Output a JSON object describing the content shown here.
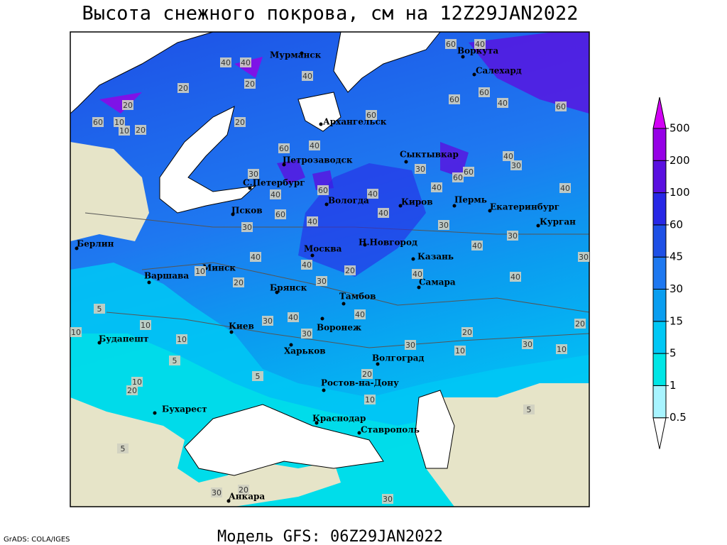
{
  "title": "Высота снежного покрова, см на 12Z29JAN2022",
  "footer": "Модель GFS: 06Z29JAN2022",
  "credit": "GrADS: COLA/IGES",
  "legend": {
    "levels": [
      0.5,
      1,
      5,
      15,
      30,
      45,
      60,
      100,
      200,
      500
    ],
    "colors": [
      "#ffffff",
      "#a8f4ff",
      "#00e6e6",
      "#00c8f5",
      "#0a9ef0",
      "#1e78f0",
      "#1e50e6",
      "#2828e6",
      "#5a10e0",
      "#9600e6",
      "#d200f5"
    ]
  },
  "cities": [
    "Мурманск",
    "Воркута",
    "Салехард",
    "Архангельск",
    "Петрозаводск",
    "Сыктывкар",
    "С.Петербург",
    "Вологда",
    "Киров",
    "Пермь",
    "Екатеринбург",
    "Курган",
    "Псков",
    "Берлин",
    "Н.Новгород",
    "Москва",
    "Казань",
    "Варшава",
    "Минск",
    "Самара",
    "Брянск",
    "Тамбов",
    "Киев",
    "Воронеж",
    "Будапешт",
    "Харьков",
    "Волгоград",
    "Ростов-на-Дону",
    "Бухарест",
    "Краснодар",
    "Ставрополь",
    "Анкара"
  ],
  "contour_labels": [
    60,
    40,
    40,
    40,
    40,
    20,
    20,
    20,
    60,
    10,
    10,
    20,
    60,
    60,
    60,
    40,
    60,
    20,
    40,
    60,
    40,
    30,
    30,
    30,
    60,
    60,
    40,
    60,
    40,
    40,
    40,
    60,
    40,
    40,
    30,
    30,
    40,
    30,
    30,
    40,
    40,
    10,
    20,
    40,
    40,
    20,
    30,
    5,
    10,
    10,
    30,
    40,
    40,
    30,
    20,
    20,
    10,
    30,
    30,
    10,
    10,
    5,
    5,
    20,
    10,
    20,
    10,
    5,
    5,
    30,
    20,
    30
  ]
}
